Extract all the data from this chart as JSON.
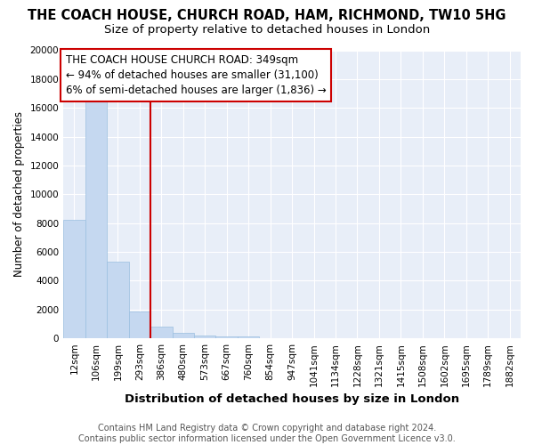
{
  "title": "THE COACH HOUSE, CHURCH ROAD, HAM, RICHMOND, TW10 5HG",
  "subtitle": "Size of property relative to detached houses in London",
  "xlabel": "Distribution of detached houses by size in London",
  "ylabel": "Number of detached properties",
  "categories": [
    "12sqm",
    "106sqm",
    "199sqm",
    "293sqm",
    "386sqm",
    "480sqm",
    "573sqm",
    "667sqm",
    "760sqm",
    "854sqm",
    "947sqm",
    "1041sqm",
    "1134sqm",
    "1228sqm",
    "1321sqm",
    "1415sqm",
    "1508sqm",
    "1602sqm",
    "1695sqm",
    "1789sqm",
    "1882sqm"
  ],
  "values": [
    8200,
    16500,
    5300,
    1850,
    800,
    380,
    200,
    150,
    100,
    0,
    0,
    0,
    0,
    0,
    0,
    0,
    0,
    0,
    0,
    0,
    0
  ],
  "bar_color": "#c5d8f0",
  "bar_edgecolor": "#9bbfe0",
  "vline_x": 3.5,
  "vline_color": "#cc0000",
  "annotation_text": "THE COACH HOUSE CHURCH ROAD: 349sqm\n← 94% of detached houses are smaller (31,100)\n6% of semi-detached houses are larger (1,836) →",
  "annotation_box_color": "#ffffff",
  "annotation_box_edgecolor": "#cc0000",
  "ylim": [
    0,
    20000
  ],
  "yticks": [
    0,
    2000,
    4000,
    6000,
    8000,
    10000,
    12000,
    14000,
    16000,
    18000,
    20000
  ],
  "background_color": "#e8eef8",
  "footer": "Contains HM Land Registry data © Crown copyright and database right 2024.\nContains public sector information licensed under the Open Government Licence v3.0.",
  "title_fontsize": 10.5,
  "subtitle_fontsize": 9.5,
  "xlabel_fontsize": 9.5,
  "ylabel_fontsize": 8.5,
  "tick_fontsize": 7.5,
  "annotation_fontsize": 8.5,
  "footer_fontsize": 7
}
